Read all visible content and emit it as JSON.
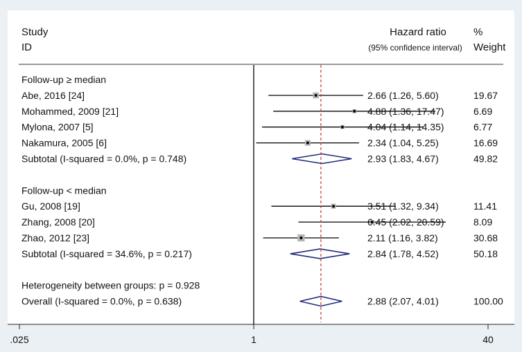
{
  "chart_data": {
    "type": "forest",
    "x_scale": "log",
    "x_ticks": [
      0.025,
      1,
      40
    ],
    "x_tick_labels": [
      ".025",
      "1",
      "40"
    ],
    "xlim": [
      0.025,
      40
    ],
    "reference_line": 1,
    "overall_effect_line": 2.88,
    "header": {
      "study_line1": "Study",
      "study_line2": "ID",
      "hr_line1": "Hazard ratio",
      "hr_line2": "(95% confidence interval)",
      "weight_line1": "%",
      "weight_line2": "Weight"
    },
    "rows": [
      {
        "kind": "group",
        "label": "Follow-up ≥ median"
      },
      {
        "kind": "study",
        "label": "Abe, 2016 [24]",
        "hr": 2.66,
        "lo": 1.26,
        "hi": 5.6,
        "ci_text": "2.66 (1.26, 5.60)",
        "weight": "19.67",
        "weight_value": 19.67
      },
      {
        "kind": "study",
        "label": "Mohammed, 2009 [21]",
        "hr": 4.88,
        "lo": 1.36,
        "hi": 17.47,
        "ci_text": "4.88 (1.36, 17.47)",
        "weight": "6.69",
        "weight_value": 6.69
      },
      {
        "kind": "study",
        "label": "Mylona, 2007 [5]",
        "hr": 4.04,
        "lo": 1.14,
        "hi": 14.35,
        "ci_text": "4.04 (1.14, 14.35)",
        "weight": "6.77",
        "weight_value": 6.77
      },
      {
        "kind": "study",
        "label": "Nakamura, 2005 [6]",
        "hr": 2.34,
        "lo": 1.04,
        "hi": 5.25,
        "ci_text": "2.34 (1.04, 5.25)",
        "weight": "16.69",
        "weight_value": 16.69
      },
      {
        "kind": "subtotal",
        "label": "Subtotal  (I-squared = 0.0%, p = 0.748)",
        "hr": 2.93,
        "lo": 1.83,
        "hi": 4.67,
        "ci_text": "2.93 (1.83, 4.67)",
        "weight": "49.82"
      },
      {
        "kind": "spacer"
      },
      {
        "kind": "group",
        "label": "Follow-up < median"
      },
      {
        "kind": "study",
        "label": "Gu, 2008 [19]",
        "hr": 3.51,
        "lo": 1.32,
        "hi": 9.34,
        "ci_text": "3.51 (1.32, 9.34)",
        "weight": "11.41",
        "weight_value": 11.41
      },
      {
        "kind": "study",
        "label": "Zhang, 2008 [20]",
        "hr": 6.45,
        "lo": 2.02,
        "hi": 20.59,
        "ci_text": "6.45 (2.02, 20.59)",
        "weight": "8.09",
        "weight_value": 8.09
      },
      {
        "kind": "study",
        "label": "Zhao, 2012 [23]",
        "hr": 2.11,
        "lo": 1.16,
        "hi": 3.82,
        "ci_text": "2.11 (1.16, 3.82)",
        "weight": "30.68",
        "weight_value": 30.68
      },
      {
        "kind": "subtotal",
        "label": "Subtotal  (I-squared = 34.6%, p = 0.217)",
        "hr": 2.84,
        "lo": 1.78,
        "hi": 4.52,
        "ci_text": "2.84 (1.78, 4.52)",
        "weight": "50.18"
      },
      {
        "kind": "spacer"
      },
      {
        "kind": "note",
        "label": "Heterogeneity between groups: p = 0.928"
      },
      {
        "kind": "overall",
        "label": "Overall  (I-squared = 0.0%, p = 0.638)",
        "hr": 2.88,
        "lo": 2.07,
        "hi": 4.01,
        "ci_text": "2.88 (2.07, 4.01)",
        "weight": "100.00"
      }
    ],
    "colors": {
      "background": "#eaf0f3",
      "panel": "#ffffff",
      "diamond": "#1f2a7a",
      "reference_line": "#000000",
      "overall_line": "#c0392b",
      "weight_box": "#b5b5b5",
      "text": "#111111"
    }
  }
}
